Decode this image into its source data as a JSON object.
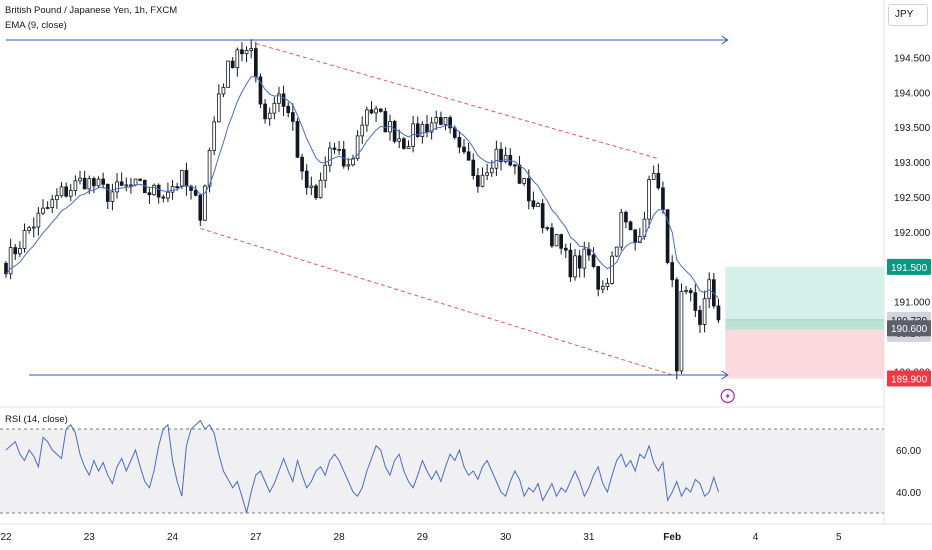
{
  "header": {
    "symbol_line": "British Pound / Japanese Yen, 1h, FXCM",
    "indicator_line": "EMA (9, close)",
    "currency": "JPY"
  },
  "colors": {
    "candle": "#131722",
    "ema": "#4a6bc9",
    "channel": "#e05a5a",
    "level": "#2f55b8",
    "profit_zone": "#d4f0e8",
    "loss_zone": "#fcd9de",
    "target_label": "#089981",
    "stop_label": "#f23645",
    "entry_label": "#5d606b",
    "current_label": "#d1d4dc",
    "rsi_line": "#4a6bc9",
    "rsi_band": "#f0f0f2"
  },
  "chart_data": [
    {
      "type": "candlestick",
      "title": "British Pound / Japanese Yen, 1h, FXCM",
      "ylim": [
        189.65,
        195.25
      ],
      "y_ticks": [
        {
          "value": 194.5,
          "label": "194.500"
        },
        {
          "value": 194.0,
          "label": "194.000"
        },
        {
          "value": 193.5,
          "label": "193.500"
        },
        {
          "value": 193.0,
          "label": "193.000"
        },
        {
          "value": 192.5,
          "label": "192.500"
        },
        {
          "value": 192.0,
          "label": "192.000"
        },
        {
          "value": 191.0,
          "label": "191.000"
        },
        {
          "value": 190.0,
          "label": "190.000"
        }
      ],
      "x_ticks": [
        {
          "value": 0,
          "label": "22"
        },
        {
          "value": 18,
          "label": "23"
        },
        {
          "value": 36,
          "label": "24"
        },
        {
          "value": 54,
          "label": "27"
        },
        {
          "value": 72,
          "label": "28"
        },
        {
          "value": 90,
          "label": "29"
        },
        {
          "value": 108,
          "label": "30"
        },
        {
          "value": 126,
          "label": "31"
        },
        {
          "value": 144,
          "label": "Feb"
        },
        {
          "value": 162,
          "label": "4"
        },
        {
          "value": 180,
          "label": "5"
        }
      ],
      "xlim": [
        0,
        182
      ],
      "last_bar_index": 154,
      "price_path": [
        [
          0,
          191.55
        ],
        [
          5,
          192.05
        ],
        [
          12,
          192.55
        ],
        [
          17,
          192.75
        ],
        [
          22,
          192.55
        ],
        [
          27,
          192.65
        ],
        [
          33,
          192.55
        ],
        [
          38,
          192.75
        ],
        [
          42,
          192.3
        ],
        [
          46,
          194.0
        ],
        [
          50,
          194.65
        ],
        [
          53,
          194.5
        ],
        [
          56,
          193.65
        ],
        [
          59,
          194.0
        ],
        [
          62,
          193.55
        ],
        [
          64,
          192.75
        ],
        [
          67,
          192.45
        ],
        [
          70,
          193.2
        ],
        [
          74,
          192.9
        ],
        [
          78,
          193.8
        ],
        [
          82,
          193.55
        ],
        [
          86,
          193.3
        ],
        [
          90,
          193.5
        ],
        [
          94,
          193.65
        ],
        [
          98,
          193.1
        ],
        [
          102,
          192.8
        ],
        [
          106,
          193.15
        ],
        [
          110,
          192.9
        ],
        [
          114,
          192.4
        ],
        [
          118,
          191.95
        ],
        [
          122,
          191.5
        ],
        [
          126,
          191.65
        ],
        [
          128,
          191.25
        ],
        [
          130,
          191.35
        ],
        [
          133,
          192.2
        ],
        [
          136,
          191.85
        ],
        [
          138,
          192.3
        ],
        [
          140,
          192.95
        ],
        [
          142,
          192.2
        ],
        [
          144,
          191.2
        ],
        [
          145,
          189.9
        ],
        [
          146,
          191.0
        ],
        [
          148,
          191.05
        ],
        [
          150,
          190.75
        ],
        [
          152,
          191.2
        ],
        [
          154,
          190.74
        ]
      ],
      "ema": {
        "name": "EMA (9, close)",
        "period": 9
      },
      "drawings": {
        "channel_upper": {
          "from": [
            54,
            194.7
          ],
          "to": [
            141,
            193.05
          ]
        },
        "channel_lower": {
          "from": [
            42,
            192.05
          ],
          "to": [
            144,
            189.95
          ]
        },
        "resistance_line": {
          "value": 194.75,
          "from_x": 0,
          "to_x": 156
        },
        "support_line": {
          "value": 189.95,
          "from_x": 5,
          "to_x": 156
        },
        "position": {
          "entry": 190.6,
          "target": 191.5,
          "stop": 189.9,
          "from_x": 155.5
        }
      },
      "price_labels": {
        "target": {
          "value": 191.5,
          "label": "191.500"
        },
        "current": {
          "value": 190.739,
          "label": "190.739",
          "countdown": "03:14"
        },
        "entry": {
          "value": 190.6,
          "label": "190.600"
        },
        "stop": {
          "value": 189.9,
          "label": "189.900"
        }
      }
    },
    {
      "type": "line",
      "title": "RSI (14, close)",
      "ylim": [
        25,
        75
      ],
      "y_ticks": [
        {
          "value": 60,
          "label": "60.00"
        },
        {
          "value": 40,
          "label": "40.00"
        }
      ],
      "bands": {
        "upper": 70,
        "lower": 30
      },
      "series": [
        {
          "values": [
            60,
            62,
            64,
            58,
            55,
            60,
            57,
            52,
            66,
            64,
            60,
            58,
            56,
            70,
            72,
            68,
            58,
            52,
            48,
            55,
            50,
            54,
            48,
            44,
            52,
            56,
            50,
            55,
            60,
            52,
            45,
            42,
            50,
            62,
            70,
            72,
            55,
            45,
            38,
            62,
            70,
            72,
            74,
            70,
            72,
            68,
            58,
            50,
            46,
            42,
            45,
            38,
            30,
            40,
            48,
            50,
            45,
            40,
            44,
            50,
            56,
            50,
            45,
            55,
            48,
            42,
            45,
            50,
            52,
            48,
            55,
            58,
            55,
            50,
            45,
            40,
            38,
            42,
            50,
            56,
            62,
            60,
            52,
            48,
            55,
            58,
            50,
            45,
            42,
            48,
            55,
            50,
            46,
            50,
            45,
            52,
            58,
            55,
            60,
            52,
            48,
            50,
            46,
            52,
            55,
            50,
            45,
            40,
            38,
            45,
            50,
            46,
            38,
            42,
            40,
            44,
            36,
            40,
            44,
            38,
            42,
            40,
            45,
            50,
            45,
            38,
            42,
            48,
            52,
            44,
            40,
            48,
            55,
            58,
            52,
            55,
            50,
            58,
            56,
            62,
            54,
            50,
            54,
            36,
            40,
            45,
            38,
            42,
            40,
            46,
            44,
            38,
            40,
            47,
            40
          ]
        }
      ]
    }
  ]
}
